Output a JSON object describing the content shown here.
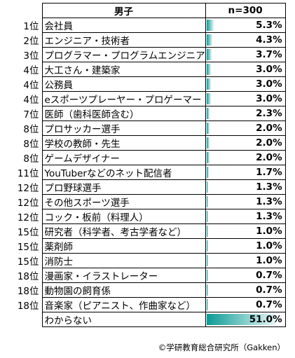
{
  "credit": "©学研教育総合研究所（Gakken）",
  "colors": {
    "bar_start": "#0b9a96",
    "bar_end": "#e4f7f6",
    "border": "#000000"
  },
  "chart_data": {
    "type": "bar",
    "column_headers": [
      "男子",
      "n=300"
    ],
    "ranks": [
      "1位",
      "2位",
      "3位",
      "4位",
      "4位",
      "4位",
      "7位",
      "8位",
      "8位",
      "8位",
      "11位",
      "12位",
      "12位",
      "12位",
      "15位",
      "15位",
      "15位",
      "18位",
      "18位",
      "18位",
      ""
    ],
    "categories": [
      "会社員",
      "エンジニア・技術者",
      "プログラマー・プログラムエンジニア",
      "大工さん・建築家",
      "公務員",
      "eスポーツプレーヤー・プロゲーマー",
      "医師（歯科医師含む）",
      "プロサッカー選手",
      "学校の教師・先生",
      "ゲームデザイナー",
      "YouTuberなどのネット配信者",
      "プロ野球選手",
      "その他スポーツ選手",
      "コック・板前（料理人）",
      "研究者（科学者、考古学者など）",
      "薬剤師",
      "消防士",
      "漫画家・イラストレーター",
      "動物園の飼育係",
      "音楽家（ピアニスト、作曲家など）",
      "わからない"
    ],
    "values": [
      5.3,
      4.3,
      3.7,
      3.0,
      3.0,
      3.0,
      2.3,
      2.0,
      2.0,
      2.0,
      1.7,
      1.3,
      1.3,
      1.3,
      1.0,
      1.0,
      1.0,
      0.7,
      0.7,
      0.7,
      51.0
    ],
    "value_labels": [
      "5.3%",
      "4.3%",
      "3.7%",
      "3.0%",
      "3.0%",
      "3.0%",
      "2.3%",
      "2.0%",
      "2.0%",
      "2.0%",
      "1.7%",
      "1.3%",
      "1.3%",
      "1.3%",
      "1.0%",
      "1.0%",
      "1.0%",
      "0.7%",
      "0.7%",
      "0.7%",
      "51.0%"
    ],
    "xlim": [
      0,
      51.0
    ]
  }
}
